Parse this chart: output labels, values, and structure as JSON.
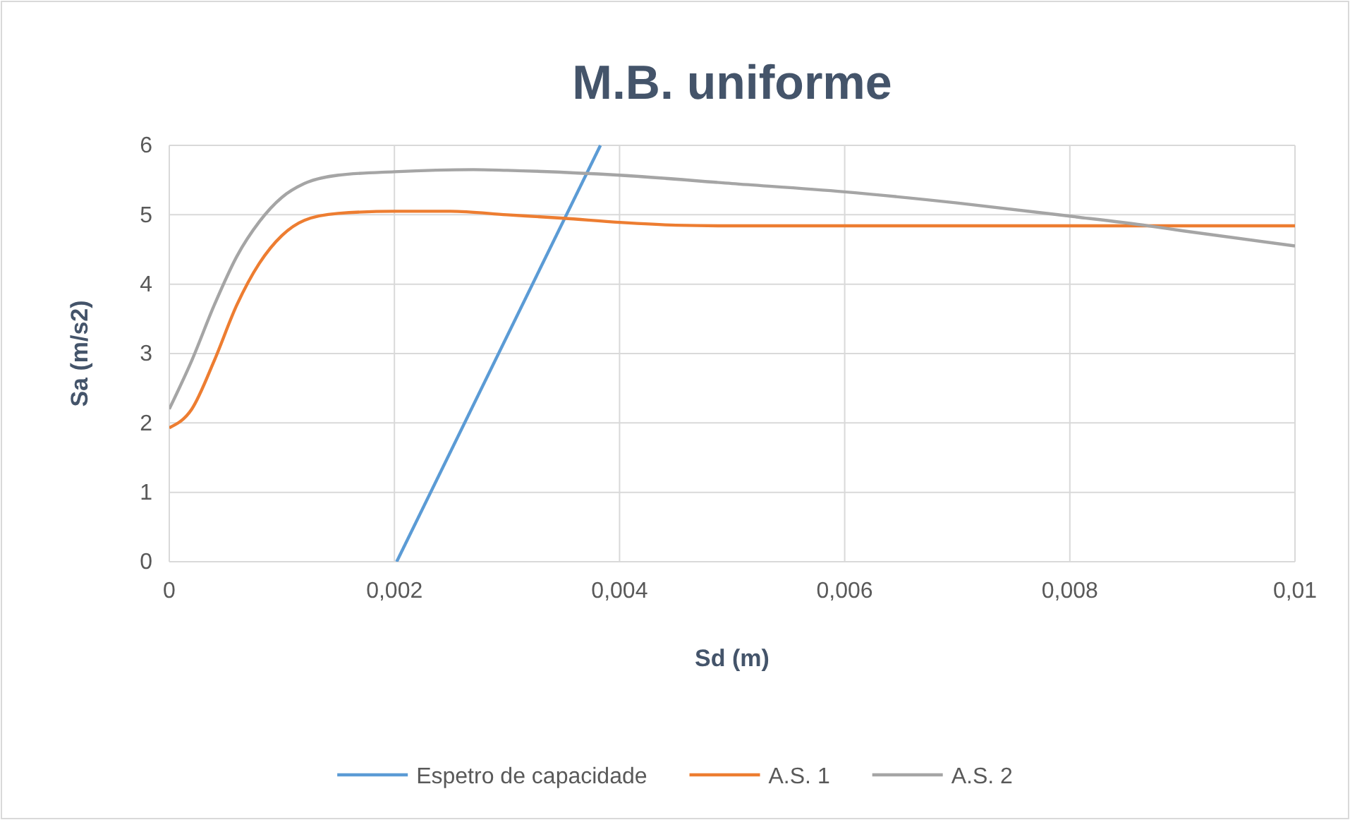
{
  "chart_data": {
    "type": "line",
    "title": "M.B. uniforme",
    "xlabel": "Sd (m)",
    "ylabel": "Sa (m/s2)",
    "xlim": [
      0,
      0.01
    ],
    "ylim": [
      0,
      6
    ],
    "xticks": [
      0,
      {
        "value": 0.002,
        "label": "0,002"
      },
      {
        "value": 0.004,
        "label": "0,004"
      },
      {
        "value": 0.006,
        "label": "0,006"
      },
      {
        "value": 0.008,
        "label": "0,008"
      },
      {
        "value": 0.01,
        "label": "0,01"
      }
    ],
    "yticks": [
      0,
      1,
      2,
      3,
      4,
      5,
      6
    ],
    "grid": true,
    "legend": "bottom",
    "marker": "none",
    "line_style": "solid",
    "series": [
      {
        "name": "Espetro de capacidade",
        "color": "#5b9bd5",
        "x": [
          0.00202,
          0.00383
        ],
        "values": [
          0,
          6
        ]
      },
      {
        "name": "A.S. 1",
        "color": "#ed7d31",
        "x": [
          0,
          0.0002,
          0.0004,
          0.0006,
          0.0008,
          0.001,
          0.0012,
          0.0015,
          0.002,
          0.0025,
          0.003,
          0.0035,
          0.004,
          0.0045,
          0.005,
          0.006,
          0.007,
          0.008,
          0.009,
          0.01
        ],
        "values": [
          1.93,
          2.2,
          2.9,
          3.7,
          4.3,
          4.7,
          4.92,
          5.02,
          5.05,
          5.05,
          5.0,
          4.95,
          4.89,
          4.85,
          4.84,
          4.84,
          4.84,
          4.84,
          4.84,
          4.84
        ]
      },
      {
        "name": "A.S. 2",
        "color": "#a5a5a5",
        "x": [
          0,
          0.0002,
          0.0004,
          0.0006,
          0.0008,
          0.001,
          0.0012,
          0.0015,
          0.002,
          0.0027,
          0.003,
          0.004,
          0.005,
          0.006,
          0.007,
          0.008,
          0.0087,
          0.009,
          0.01
        ],
        "values": [
          2.2,
          2.9,
          3.7,
          4.4,
          4.9,
          5.25,
          5.45,
          5.57,
          5.62,
          5.65,
          5.64,
          5.57,
          5.45,
          5.33,
          5.17,
          4.98,
          4.84,
          4.77,
          4.55
        ]
      }
    ]
  }
}
